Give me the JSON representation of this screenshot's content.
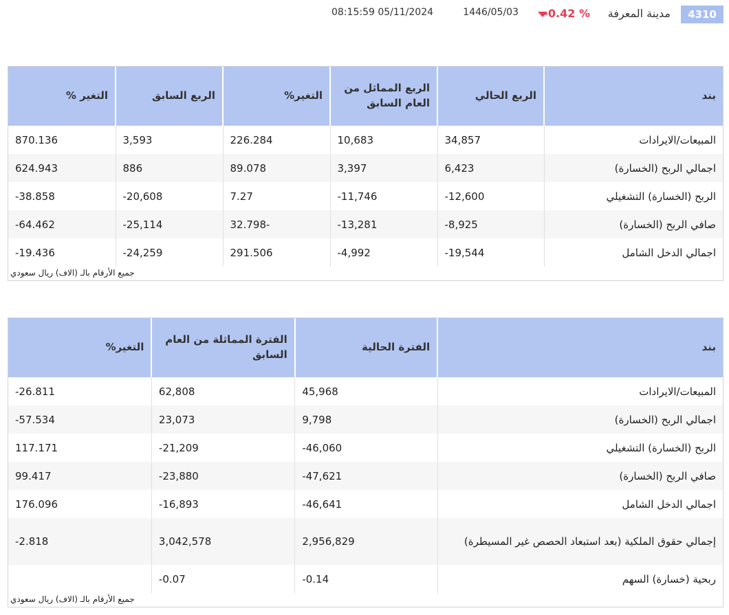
{
  "header": {
    "ticker": "4310",
    "company": "مدينة المعرفة",
    "change": "-0.42 %",
    "hijri_date": "1446/05/03",
    "datetime": "08:15:59 05/11/2024"
  },
  "colors": {
    "accent": "#b3c6f2",
    "positive": "#1fa32f",
    "negative": "#e33e55"
  },
  "quarterly": {
    "headers": [
      "بند",
      "الربع الحالي",
      "الربع المماثل من العام السابق",
      "التغير%",
      "الربع السابق",
      "التغير %"
    ],
    "rows": [
      {
        "label": "المبيعات/الايرادات",
        "cells": [
          "34,857",
          "10,683",
          "226.284",
          "3,593",
          "870.136"
        ],
        "tones": [
          "pos",
          "pos",
          "",
          "pos",
          ""
        ]
      },
      {
        "label": "اجمالي الربح (الخسارة)",
        "cells": [
          "6,423",
          "3,397",
          "89.078",
          "886",
          "624.943"
        ],
        "tones": [
          "pos",
          "pos",
          "",
          "pos",
          ""
        ]
      },
      {
        "label": "الربح (الخسارة) التشغيلي",
        "cells": [
          "-12,600",
          "-11,746",
          "7.27",
          "-20,608",
          "-38.858"
        ],
        "tones": [
          "neg",
          "neg",
          "",
          "neg",
          ""
        ]
      },
      {
        "label": "صافي الربح (الخسارة)",
        "cells": [
          "-8,925",
          "-13,281",
          "32.798-",
          "-25,114",
          "-64.462"
        ],
        "tones": [
          "neg",
          "neg",
          "",
          "neg",
          ""
        ]
      },
      {
        "label": "اجمالي الدخل الشامل",
        "cells": [
          "-19,544",
          "-4,992",
          "291.506",
          "-24,259",
          "-19.436"
        ],
        "tones": [
          "neg",
          "neg",
          "",
          "neg",
          ""
        ]
      }
    ],
    "footnote": "جميع الأرقام بالـ (الاف) ريال سعودي"
  },
  "period": {
    "headers": [
      "بند",
      "الفترة الحالية",
      "الفترة المماثلة من العام السابق",
      "التغير%"
    ],
    "rows": [
      {
        "label": "المبيعات/الايرادات",
        "cells": [
          "45,968",
          "62,808",
          "-26.811"
        ],
        "tones": [
          "pos",
          "pos",
          ""
        ]
      },
      {
        "label": "اجمالي الربح (الخسارة)",
        "cells": [
          "9,798",
          "23,073",
          "-57.534"
        ],
        "tones": [
          "pos",
          "pos",
          ""
        ]
      },
      {
        "label": "الربح (الخسارة) التشغيلي",
        "cells": [
          "-46,060",
          "-21,209",
          "117.171"
        ],
        "tones": [
          "neg",
          "neg",
          ""
        ]
      },
      {
        "label": "صافي الربح (الخسارة)",
        "cells": [
          "-47,621",
          "-23,880",
          "99.417"
        ],
        "tones": [
          "neg",
          "neg",
          ""
        ]
      },
      {
        "label": "اجمالي الدخل الشامل",
        "cells": [
          "-46,641",
          "-16,893",
          "176.096"
        ],
        "tones": [
          "neg",
          "neg",
          ""
        ]
      },
      {
        "label": "إجمالي حقوق الملكية (بعد استبعاد الحصص غير المسيطرة)",
        "cells": [
          "2,956,829",
          "3,042,578",
          "-2.818"
        ],
        "tones": [
          "pos",
          "pos",
          ""
        ]
      },
      {
        "label": "ربحية (خسارة) السهم",
        "cells": [
          "-0.14",
          "-0.07",
          ""
        ],
        "tones": [
          "neg",
          "neg",
          ""
        ]
      }
    ],
    "footnote": "جميع الأرقام بالـ (الاف) ريال سعودي"
  }
}
